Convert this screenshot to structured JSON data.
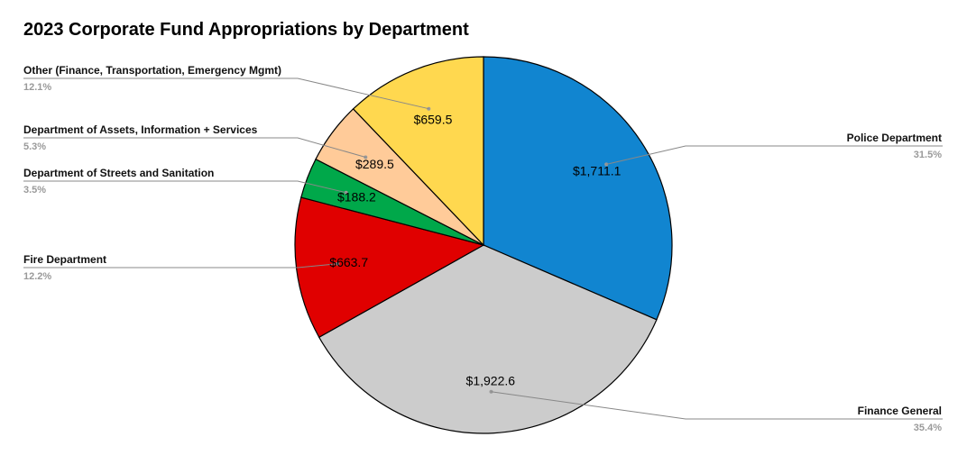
{
  "chart_data": {
    "type": "pie",
    "title": "2023 Corporate Fund Appropriations by Department",
    "start_angle_deg": 0,
    "direction": "clockwise",
    "slices": [
      {
        "label": "Police Department",
        "value": 1711.1,
        "value_label": "$1,711.1",
        "percent_label": "31.5%",
        "color": "#1185d0",
        "legend_side": "right"
      },
      {
        "label": "Finance General",
        "value": 1922.6,
        "value_label": "$1,922.6",
        "percent_label": "35.4%",
        "color": "#cccccc",
        "legend_side": "right"
      },
      {
        "label": "Fire Department",
        "value": 663.7,
        "value_label": "$663.7",
        "percent_label": "12.2%",
        "color": "#e00000",
        "legend_side": "left"
      },
      {
        "label": "Department of Streets and Sanitation",
        "value": 188.2,
        "value_label": "$188.2",
        "percent_label": "3.5%",
        "color": "#00a84a",
        "legend_side": "left"
      },
      {
        "label": "Department of Assets, Information + Services",
        "value": 289.5,
        "value_label": "$289.5",
        "percent_label": "5.3%",
        "color": "#ffcb99",
        "legend_side": "left"
      },
      {
        "label": "Other (Finance, Transportation, Emergency Mgmt)",
        "value": 659.5,
        "value_label": "$659.5",
        "percent_label": "12.1%",
        "color": "#ffd84f",
        "legend_side": "left"
      }
    ]
  }
}
